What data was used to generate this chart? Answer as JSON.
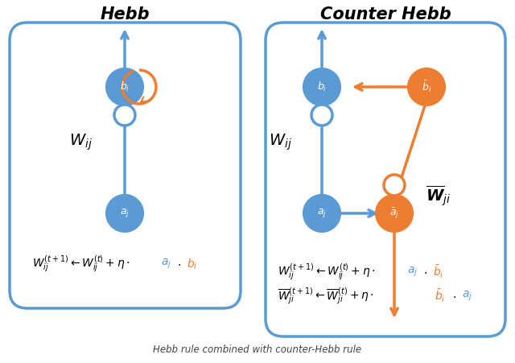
{
  "bg_color": "#ffffff",
  "blue": "#5b9bd5",
  "orange": "#ed7d31",
  "panel_edge_color": "#5b9bd5",
  "hebb_title": "Hebb",
  "counter_title": "Counter Hebb"
}
